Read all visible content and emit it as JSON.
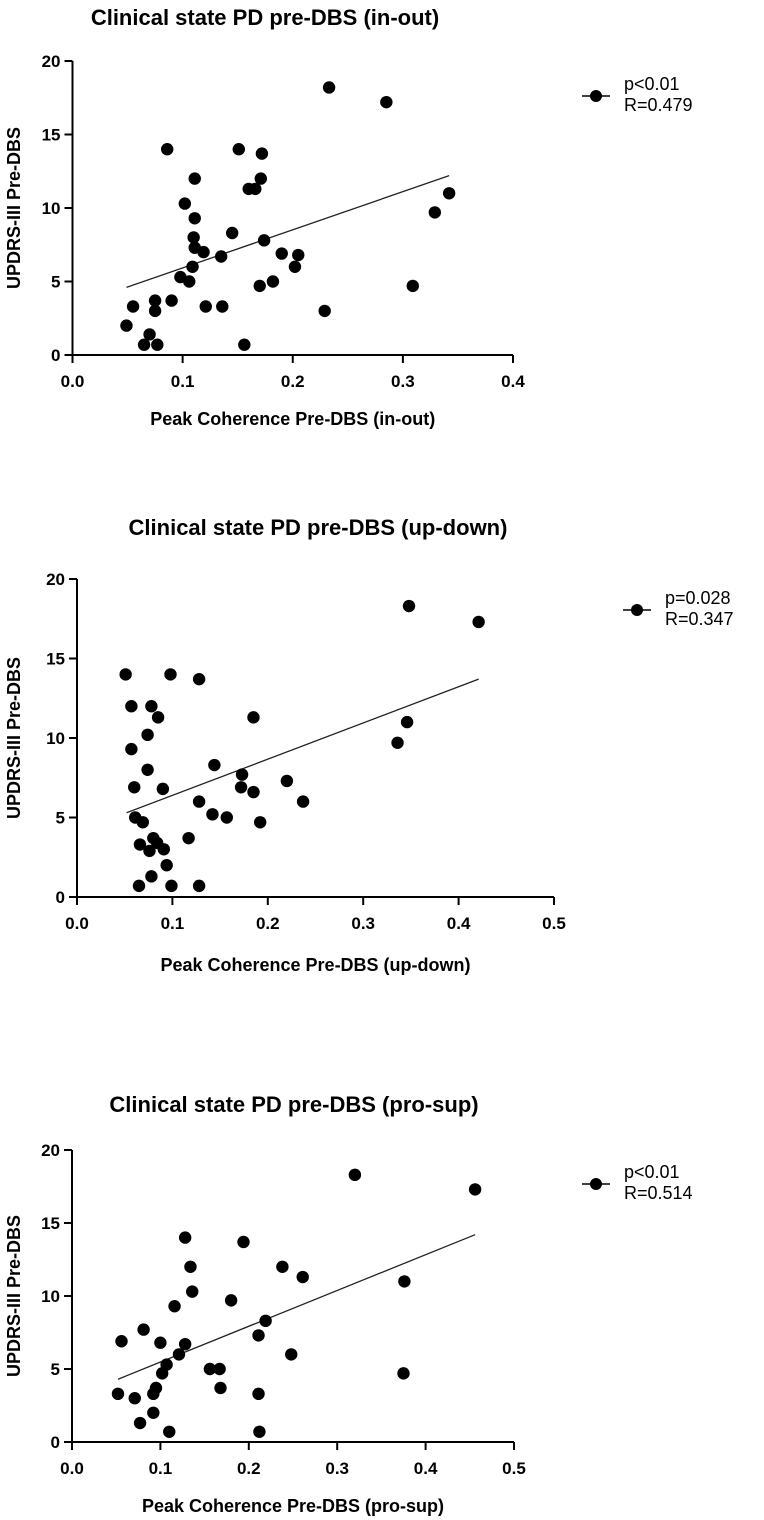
{
  "chart_data": [
    {
      "type": "scatter",
      "title": "Clinical state PD pre-DBS (in-out)",
      "xlabel": "Peak Coherence Pre-DBS (in-out)",
      "ylabel": "UPDRS-III Pre-DBS",
      "xlim": [
        0,
        0.4
      ],
      "ylim": [
        0,
        20
      ],
      "xticks": [
        "0.0",
        "0.1",
        "0.2",
        "0.3",
        "0.4"
      ],
      "xtick_values": [
        0,
        0.1,
        0.2,
        0.3,
        0.4
      ],
      "yticks": [
        "0",
        "5",
        "10",
        "15",
        "20"
      ],
      "ytick_values": [
        0,
        5,
        10,
        15,
        20
      ],
      "grid": false,
      "legend": {
        "placement": "top-right",
        "lines": [
          "p<0.01",
          "R=0.479"
        ]
      },
      "points": [
        [
          0.086,
          14.0
        ],
        [
          0.151,
          14.0
        ],
        [
          0.172,
          13.7
        ],
        [
          0.111,
          12.0
        ],
        [
          0.171,
          12.0
        ],
        [
          0.16,
          11.3
        ],
        [
          0.166,
          11.3
        ],
        [
          0.102,
          10.3
        ],
        [
          0.111,
          9.3
        ],
        [
          0.145,
          8.3
        ],
        [
          0.11,
          8.0
        ],
        [
          0.174,
          7.8
        ],
        [
          0.111,
          7.3
        ],
        [
          0.119,
          7.0
        ],
        [
          0.135,
          6.7
        ],
        [
          0.19,
          6.9
        ],
        [
          0.205,
          6.8
        ],
        [
          0.202,
          6.0
        ],
        [
          0.109,
          6.0
        ],
        [
          0.098,
          5.3
        ],
        [
          0.106,
          5.0
        ],
        [
          0.17,
          4.7
        ],
        [
          0.182,
          5.0
        ],
        [
          0.055,
          3.3
        ],
        [
          0.075,
          3.7
        ],
        [
          0.075,
          3.0
        ],
        [
          0.09,
          3.7
        ],
        [
          0.121,
          3.3
        ],
        [
          0.136,
          3.3
        ],
        [
          0.049,
          2.0
        ],
        [
          0.07,
          1.4
        ],
        [
          0.065,
          0.7
        ],
        [
          0.077,
          0.7
        ],
        [
          0.156,
          0.7
        ],
        [
          0.233,
          18.2
        ],
        [
          0.285,
          17.2
        ],
        [
          0.342,
          11.0
        ],
        [
          0.329,
          9.7
        ],
        [
          0.309,
          4.7
        ],
        [
          0.229,
          3.0
        ]
      ],
      "fit_line": [
        [
          0.049,
          4.6
        ],
        [
          0.342,
          12.2
        ]
      ]
    },
    {
      "type": "scatter",
      "title": "Clinical state PD pre-DBS (up-down)",
      "xlabel": "Peak Coherence Pre-DBS (up-down)",
      "ylabel": "UPDRS-III Pre-DBS",
      "xlim": [
        0,
        0.5
      ],
      "ylim": [
        0,
        20
      ],
      "xticks": [
        "0.0",
        "0.1",
        "0.2",
        "0.3",
        "0.4",
        "0.5"
      ],
      "xtick_values": [
        0,
        0.1,
        0.2,
        0.3,
        0.4,
        0.5
      ],
      "yticks": [
        "0",
        "5",
        "10",
        "15",
        "20"
      ],
      "ytick_values": [
        0,
        5,
        10,
        15,
        20
      ],
      "grid": false,
      "legend": {
        "placement": "top-right",
        "lines": [
          "p=0.028",
          "R=0.347"
        ]
      },
      "points": [
        [
          0.348,
          18.3
        ],
        [
          0.421,
          17.3
        ],
        [
          0.051,
          14.0
        ],
        [
          0.098,
          14.0
        ],
        [
          0.128,
          13.7
        ],
        [
          0.057,
          12.0
        ],
        [
          0.078,
          12.0
        ],
        [
          0.085,
          11.3
        ],
        [
          0.185,
          11.3
        ],
        [
          0.074,
          10.2
        ],
        [
          0.057,
          9.3
        ],
        [
          0.346,
          11.0
        ],
        [
          0.336,
          9.7
        ],
        [
          0.144,
          8.3
        ],
        [
          0.074,
          8.0
        ],
        [
          0.173,
          7.7
        ],
        [
          0.22,
          7.3
        ],
        [
          0.06,
          6.9
        ],
        [
          0.09,
          6.8
        ],
        [
          0.172,
          6.9
        ],
        [
          0.185,
          6.6
        ],
        [
          0.128,
          6.0
        ],
        [
          0.237,
          6.0
        ],
        [
          0.142,
          5.2
        ],
        [
          0.157,
          5.0
        ],
        [
          0.061,
          5.0
        ],
        [
          0.069,
          4.7
        ],
        [
          0.192,
          4.7
        ],
        [
          0.117,
          3.7
        ],
        [
          0.066,
          3.3
        ],
        [
          0.08,
          3.7
        ],
        [
          0.076,
          2.9
        ],
        [
          0.084,
          3.4
        ],
        [
          0.091,
          3.0
        ],
        [
          0.094,
          2.0
        ],
        [
          0.078,
          1.3
        ],
        [
          0.065,
          0.7
        ],
        [
          0.099,
          0.7
        ],
        [
          0.128,
          0.7
        ]
      ],
      "fit_line": [
        [
          0.052,
          5.3
        ],
        [
          0.421,
          13.7
        ]
      ]
    },
    {
      "type": "scatter",
      "title": "Clinical state PD pre-DBS (pro-sup)",
      "xlabel": "Peak Coherence Pre-DBS (pro-sup)",
      "ylabel": "UPDRS-III Pre-DBS",
      "xlim": [
        0,
        0.5
      ],
      "ylim": [
        0,
        20
      ],
      "xticks": [
        "0.0",
        "0.1",
        "0.2",
        "0.3",
        "0.4",
        "0.5"
      ],
      "xtick_values": [
        0,
        0.1,
        0.2,
        0.3,
        0.4,
        0.5
      ],
      "yticks": [
        "0",
        "5",
        "10",
        "15",
        "20"
      ],
      "ytick_values": [
        0,
        5,
        10,
        15,
        20
      ],
      "grid": false,
      "legend": {
        "placement": "top-right",
        "lines": [
          "p<0.01",
          "R=0.514"
        ]
      },
      "points": [
        [
          0.32,
          18.3
        ],
        [
          0.456,
          17.3
        ],
        [
          0.128,
          14.0
        ],
        [
          0.194,
          13.7
        ],
        [
          0.134,
          12.0
        ],
        [
          0.238,
          12.0
        ],
        [
          0.261,
          11.3
        ],
        [
          0.376,
          11.0
        ],
        [
          0.136,
          10.3
        ],
        [
          0.116,
          9.3
        ],
        [
          0.18,
          9.7
        ],
        [
          0.219,
          8.3
        ],
        [
          0.081,
          7.7
        ],
        [
          0.211,
          7.3
        ],
        [
          0.056,
          6.9
        ],
        [
          0.1,
          6.8
        ],
        [
          0.128,
          6.7
        ],
        [
          0.121,
          6.0
        ],
        [
          0.248,
          6.0
        ],
        [
          0.107,
          5.3
        ],
        [
          0.156,
          5.0
        ],
        [
          0.167,
          5.0
        ],
        [
          0.102,
          4.7
        ],
        [
          0.375,
          4.7
        ],
        [
          0.168,
          3.7
        ],
        [
          0.095,
          3.7
        ],
        [
          0.092,
          3.3
        ],
        [
          0.052,
          3.3
        ],
        [
          0.211,
          3.3
        ],
        [
          0.071,
          3.0
        ],
        [
          0.092,
          2.0
        ],
        [
          0.077,
          1.3
        ],
        [
          0.11,
          0.7
        ],
        [
          0.212,
          0.7
        ]
      ],
      "fit_line": [
        [
          0.052,
          4.3
        ],
        [
          0.456,
          14.2
        ]
      ]
    }
  ]
}
